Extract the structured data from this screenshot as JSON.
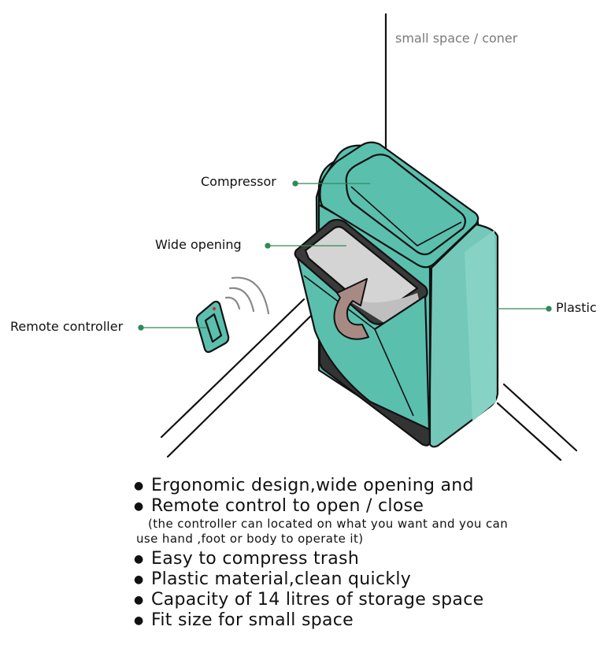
{
  "labels": {
    "space": "small space / coner",
    "compressor": "Compressor",
    "wide_opening": "Wide opening",
    "remote": "Remote controller",
    "plastic": "Plastic"
  },
  "features": {
    "item1": "Ergonomic design,wide opening and",
    "item2": "Remote control to open / close",
    "note_line1": "(the controller can located on what you want and  you can",
    "note_line2": "use hand ,foot or body to operate it)",
    "item3": "Easy to compress trash",
    "item4": "Plastic material,clean quickly",
    "item5": "Capacity of 14 litres of storage space",
    "item6": "Fit size for small space"
  },
  "colors": {
    "teal": "#5bbfae",
    "teal_light": "#7fd0c2",
    "lid_grey": "#d4d4d4",
    "arrow": "#a88a84",
    "base": "#333333",
    "leader": "#2e8b57"
  }
}
